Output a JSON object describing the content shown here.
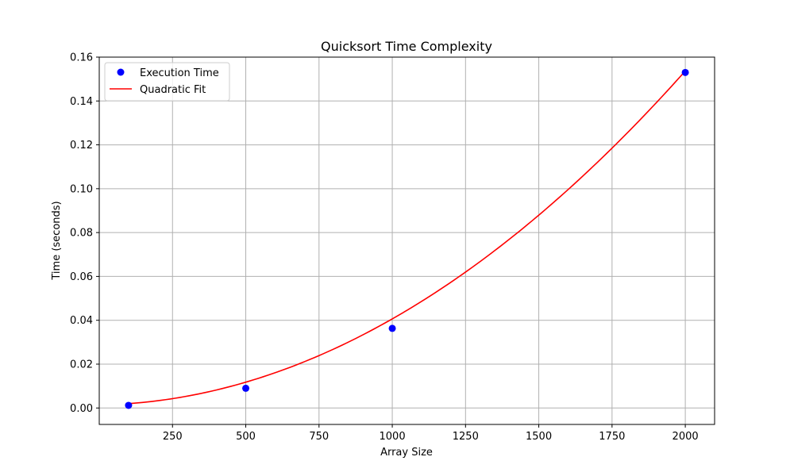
{
  "chart_data": {
    "type": "scatter",
    "title": "Quicksort Time Complexity",
    "xlabel": "Array Size",
    "ylabel": "Time (seconds)",
    "xlim": [
      0,
      2100
    ],
    "ylim": [
      -0.0075,
      0.16
    ],
    "x_ticks": [
      250,
      500,
      750,
      1000,
      1250,
      1500,
      1750,
      2000
    ],
    "y_ticks": [
      0.0,
      0.02,
      0.04,
      0.06,
      0.08,
      0.1,
      0.12,
      0.14,
      0.16
    ],
    "grid": true,
    "legend_position": "top-left",
    "series": [
      {
        "name": "Execution Time",
        "kind": "markers",
        "color": "#0000ff",
        "x": [
          100,
          500,
          1000,
          2000
        ],
        "y": [
          0.0012,
          0.009,
          0.0363,
          0.153
        ]
      },
      {
        "name": "Quadratic Fit",
        "kind": "line",
        "color": "#ff0000",
        "fit": "quadratic",
        "coefficients": [
          3.69e-08,
          2.36e-06,
          0.00137
        ],
        "x_range": [
          100,
          2000
        ]
      }
    ]
  }
}
